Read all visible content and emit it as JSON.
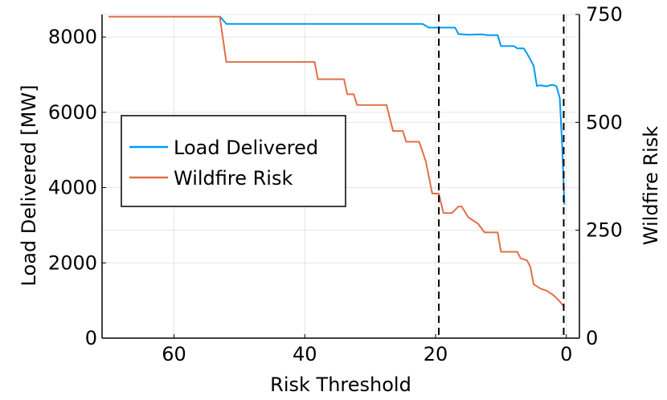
{
  "chart_data": {
    "type": "line",
    "xlabel": "Risk Threshold",
    "ylabel_left": "Load Delivered [MW]",
    "ylabel_right": "Wildfire Risk",
    "xlim": [
      71,
      -2
    ],
    "x_reversed": true,
    "ylim_left": [
      0,
      8600
    ],
    "ylim_right": [
      0,
      750
    ],
    "x_ticks": [
      60,
      40,
      20,
      0
    ],
    "y_ticks_left": [
      0,
      2000,
      4000,
      6000,
      8000
    ],
    "y_ticks_right": [
      0,
      250,
      500,
      750
    ],
    "grid": true,
    "legend_position": "center-left",
    "vlines": [
      19.5,
      0.4
    ],
    "series": [
      {
        "name": "Load Delivered",
        "axis": "left",
        "color": "#009af9",
        "points": [
          [
            53,
            8550
          ],
          [
            52,
            8350
          ],
          [
            22,
            8350
          ],
          [
            21,
            8250
          ],
          [
            17,
            8250
          ],
          [
            16.5,
            8080
          ],
          [
            15,
            8060
          ],
          [
            13,
            8070
          ],
          [
            12,
            8050
          ],
          [
            10.5,
            8050
          ],
          [
            10,
            7760
          ],
          [
            8,
            7760
          ],
          [
            7.5,
            7700
          ],
          [
            6.5,
            7700
          ],
          [
            6,
            7560
          ],
          [
            5,
            7240
          ],
          [
            4.5,
            6700
          ],
          [
            4,
            6720
          ],
          [
            3,
            6690
          ],
          [
            2.5,
            6720
          ],
          [
            2,
            6730
          ],
          [
            1.5,
            6690
          ],
          [
            1,
            6380
          ],
          [
            0.6,
            5000
          ],
          [
            0.3,
            3550
          ]
        ]
      },
      {
        "name": "Wildfire Risk",
        "axis": "right",
        "color": "#e26f46",
        "points": [
          [
            70,
            745
          ],
          [
            53,
            745
          ],
          [
            52,
            640
          ],
          [
            38.5,
            640
          ],
          [
            38,
            600
          ],
          [
            34,
            600
          ],
          [
            33.5,
            565
          ],
          [
            32.5,
            565
          ],
          [
            32,
            540
          ],
          [
            27.5,
            540
          ],
          [
            26.5,
            480
          ],
          [
            25,
            480
          ],
          [
            24.5,
            455
          ],
          [
            22.5,
            455
          ],
          [
            21.5,
            410
          ],
          [
            20.5,
            335
          ],
          [
            19.5,
            335
          ],
          [
            18.8,
            290
          ],
          [
            17.5,
            290
          ],
          [
            16.5,
            305
          ],
          [
            16,
            305
          ],
          [
            15,
            280
          ],
          [
            13.5,
            265
          ],
          [
            12.5,
            245
          ],
          [
            10.5,
            245
          ],
          [
            10,
            200
          ],
          [
            7.5,
            200
          ],
          [
            7,
            185
          ],
          [
            6,
            180
          ],
          [
            5.5,
            165
          ],
          [
            5,
            125
          ],
          [
            4,
            115
          ],
          [
            3,
            110
          ],
          [
            2,
            100
          ],
          [
            1,
            85
          ],
          [
            0.3,
            72
          ]
        ]
      }
    ]
  },
  "legend": {
    "items": [
      {
        "label": "Load Delivered",
        "color": "#009af9"
      },
      {
        "label": "Wildfire Risk",
        "color": "#e26f46"
      }
    ]
  }
}
